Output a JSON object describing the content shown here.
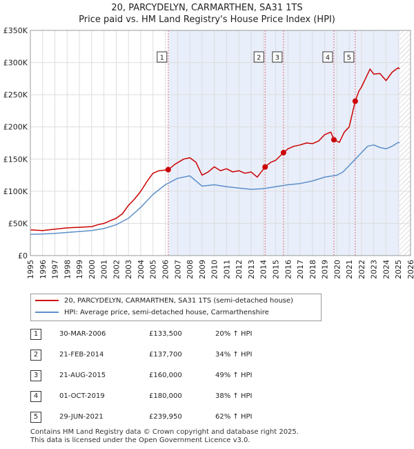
{
  "title": {
    "line1": "20, PARCYDELYN, CARMARTHEN, SA31 1TS",
    "line2": "Price paid vs. HM Land Registry's House Price Index (HPI)"
  },
  "legend": {
    "property_label": "20, PARCYDELYN, CARMARTHEN, SA31 1TS (semi-detached house)",
    "hpi_label": "HPI: Average price, semi-detached house, Carmarthenshire"
  },
  "sales": [
    {
      "num": "1",
      "date": "30-MAR-2006",
      "price": "£133,500",
      "hpi": "20% ↑ HPI"
    },
    {
      "num": "2",
      "date": "21-FEB-2014",
      "price": "£137,700",
      "hpi": "34% ↑ HPI"
    },
    {
      "num": "3",
      "date": "21-AUG-2015",
      "price": "£160,000",
      "hpi": "49% ↑ HPI"
    },
    {
      "num": "4",
      "date": "01-OCT-2019",
      "price": "£180,000",
      "hpi": "38% ↑ HPI"
    },
    {
      "num": "5",
      "date": "29-JUN-2021",
      "price": "£239,950",
      "hpi": "62% ↑ HPI"
    }
  ],
  "footer": {
    "line1": "Contains HM Land Registry data © Crown copyright and database right 2025.",
    "line2": "This data is licensed under the Open Government Licence v3.0."
  },
  "chart_data": {
    "type": "line",
    "xlim": [
      1995,
      2026
    ],
    "ylim": [
      0,
      350000
    ],
    "x_ticks": [
      "1995",
      "1996",
      "1997",
      "1998",
      "1999",
      "2000",
      "2001",
      "2002",
      "2003",
      "2004",
      "2005",
      "2006",
      "2007",
      "2008",
      "2009",
      "2010",
      "2011",
      "2012",
      "2013",
      "2014",
      "2015",
      "2016",
      "2017",
      "2018",
      "2019",
      "2020",
      "2021",
      "2022",
      "2023",
      "2024",
      "2025",
      "2026"
    ],
    "y_ticks": [
      {
        "v": 0,
        "label": "£0"
      },
      {
        "v": 50000,
        "label": "£50K"
      },
      {
        "v": 100000,
        "label": "£100K"
      },
      {
        "v": 150000,
        "label": "£150K"
      },
      {
        "v": 200000,
        "label": "£200K"
      },
      {
        "v": 250000,
        "label": "£250K"
      },
      {
        "v": 300000,
        "label": "£300K"
      },
      {
        "v": 350000,
        "label": "£350K"
      }
    ],
    "grid": true,
    "colors": {
      "property": "#cc0000",
      "hpi": "#5b8fc9",
      "shade": "#e8eefa",
      "vline": "#e07070",
      "future": "#d8d8d8"
    },
    "forecast_start": 2025.1,
    "series": [
      {
        "name": "20, PARCYDELYN, CARMARTHEN, SA31 1TS (semi-detached house)",
        "x": [
          1995,
          1996,
          1997,
          1998,
          1999,
          2000,
          2000.5,
          2001,
          2001.5,
          2002,
          2002.5,
          2003,
          2003.5,
          2004,
          2004.5,
          2005,
          2005.5,
          2006.24,
          2006.8,
          2007.5,
          2008,
          2008.5,
          2009,
          2009.5,
          2010,
          2010.5,
          2011,
          2011.5,
          2012,
          2012.5,
          2013,
          2013.5,
          2014.14,
          2014.6,
          2015,
          2015.64,
          2016,
          2016.5,
          2017,
          2017.5,
          2018,
          2018.5,
          2019,
          2019.5,
          2019.75,
          2020.2,
          2020.6,
          2021,
          2021.49,
          2021.8,
          2022,
          2022.4,
          2022.7,
          2023,
          2023.5,
          2024,
          2024.5,
          2025,
          2025.1
        ],
        "values": [
          40000,
          39000,
          41000,
          43000,
          44000,
          45000,
          48000,
          50000,
          54000,
          58000,
          65000,
          78000,
          88000,
          100000,
          115000,
          128000,
          132000,
          133500,
          142000,
          150000,
          152000,
          145000,
          125000,
          130000,
          138000,
          132000,
          135000,
          130000,
          132000,
          128000,
          130000,
          122000,
          137700,
          145000,
          148000,
          160000,
          166000,
          170000,
          172000,
          175000,
          174000,
          178000,
          188000,
          192000,
          180000,
          176000,
          192000,
          200000,
          239950,
          256000,
          262000,
          278000,
          290000,
          282000,
          283000,
          272000,
          285000,
          292000,
          290000
        ]
      },
      {
        "name": "HPI: Average price, semi-detached house, Carmarthenshire",
        "x": [
          1995,
          1996,
          1997,
          1998,
          1999,
          2000,
          2001,
          2002,
          2003,
          2004,
          2005,
          2006,
          2007,
          2008,
          2009,
          2010,
          2011,
          2012,
          2013,
          2014,
          2015,
          2016,
          2017,
          2018,
          2019,
          2020,
          2020.5,
          2021,
          2021.5,
          2022,
          2022.5,
          2023,
          2023.5,
          2024,
          2024.5,
          2025,
          2025.1
        ],
        "values": [
          33000,
          33500,
          34500,
          36000,
          37500,
          39000,
          42000,
          48000,
          58000,
          75000,
          95000,
          110000,
          120000,
          124000,
          108000,
          110000,
          107000,
          105000,
          103000,
          104000,
          107000,
          110000,
          112000,
          116000,
          122000,
          125000,
          130000,
          140000,
          150000,
          160000,
          170000,
          172000,
          168000,
          166000,
          170000,
          176000,
          175000
        ]
      }
    ],
    "sale_markers": [
      {
        "label": "1",
        "x": 2006.24,
        "y": 133500
      },
      {
        "label": "2",
        "x": 2014.14,
        "y": 137700
      },
      {
        "label": "3",
        "x": 2015.64,
        "y": 160000
      },
      {
        "label": "4",
        "x": 2019.75,
        "y": 180000
      },
      {
        "label": "5",
        "x": 2021.49,
        "y": 239950
      }
    ]
  }
}
